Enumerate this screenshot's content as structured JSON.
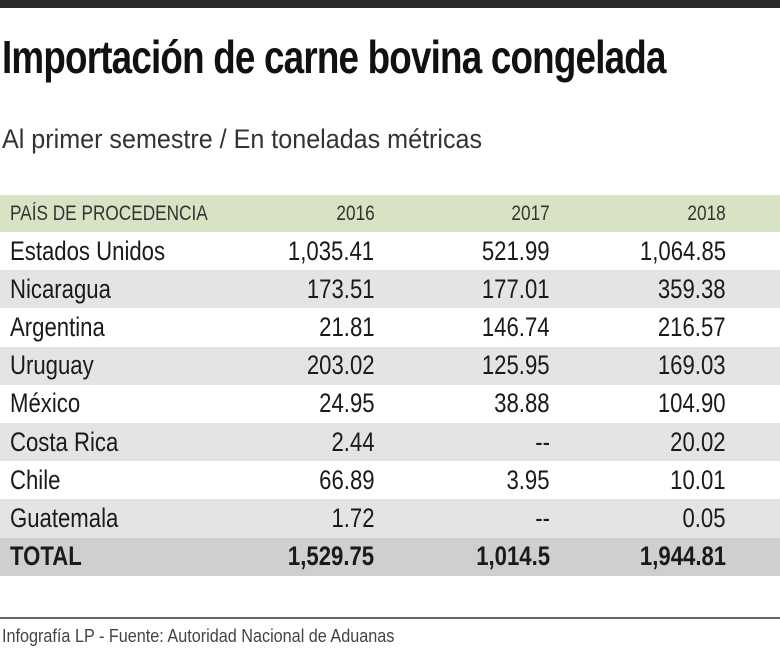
{
  "title": "Importación de carne bovina congelada",
  "subtitle": "Al primer semestre / En toneladas métricas",
  "footer": "Infografía LP  - Fuente: Autoridad Nacional de Aduanas",
  "colors": {
    "header_bg": "#d8e3c6",
    "alt_row": "#e4e4e4",
    "total_row": "#cfcfcf"
  },
  "chart_data": {
    "type": "table",
    "title": "Importación de carne bovina congelada",
    "subtitle": "Al primer semestre / En toneladas métricas",
    "columns": [
      "PAÍS DE PROCEDENCIA",
      "2016",
      "2017",
      "2018"
    ],
    "rows": [
      [
        "Estados Unidos",
        "1,035.41",
        "521.99",
        "1,064.85"
      ],
      [
        "Nicaragua",
        "173.51",
        "177.01",
        "359.38"
      ],
      [
        "Argentina",
        "21.81",
        "146.74",
        "216.57"
      ],
      [
        "Uruguay",
        "203.02",
        "125.95",
        "169.03"
      ],
      [
        "México",
        "24.95",
        "38.88",
        "104.90"
      ],
      [
        "Costa Rica",
        "2.44",
        "--",
        "20.02"
      ],
      [
        "Chile",
        "66.89",
        "3.95",
        "10.01"
      ],
      [
        "Guatemala",
        "1.72",
        "--",
        "0.05"
      ]
    ],
    "total": [
      "TOTAL",
      "1,529.75",
      "1,014.5",
      "1,944.81"
    ]
  }
}
